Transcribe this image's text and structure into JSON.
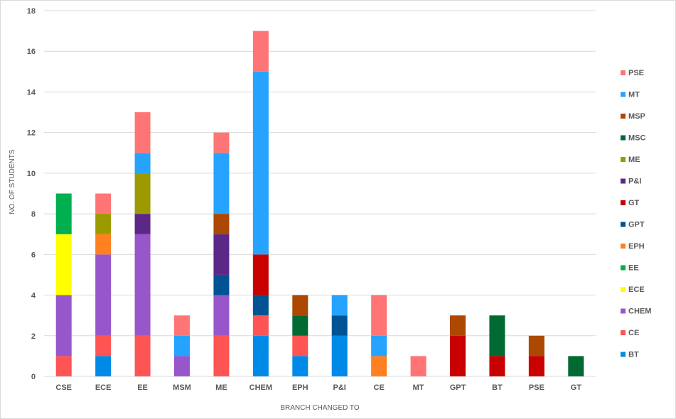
{
  "chart_data": {
    "type": "bar",
    "stacked": true,
    "title": "",
    "xlabel": "BRANCH CHANGED TO",
    "ylabel": "NO. OF STUDENTS",
    "ylim": [
      0,
      18
    ],
    "yticks": [
      0,
      2,
      4,
      6,
      8,
      10,
      12,
      14,
      16,
      18
    ],
    "grid": true,
    "legend_position": "right",
    "categories": [
      "CSE",
      "ECE",
      "EE",
      "MSM",
      "ME",
      "CHEM",
      "EPH",
      "P&I",
      "CE",
      "MT",
      "GPT",
      "BT",
      "PSE",
      "GT"
    ],
    "series": [
      {
        "name": "BT",
        "color": "#008ae8",
        "values": [
          0,
          1,
          0,
          0,
          0,
          2,
          1,
          2,
          0,
          0,
          0,
          0,
          0,
          0
        ]
      },
      {
        "name": "CE",
        "color": "#ff5454",
        "values": [
          1,
          1,
          2,
          0,
          2,
          1,
          1,
          0,
          0,
          0,
          0,
          0,
          0,
          0
        ]
      },
      {
        "name": "CHEM",
        "color": "#9757cb",
        "values": [
          3,
          4,
          5,
          1,
          2,
          0,
          0,
          0,
          0,
          0,
          0,
          0,
          0,
          0
        ]
      },
      {
        "name": "ECE",
        "color": "#ffff00",
        "values": [
          3,
          0,
          0,
          0,
          0,
          0,
          0,
          0,
          0,
          0,
          0,
          0,
          0,
          0
        ]
      },
      {
        "name": "EE",
        "color": "#00af50",
        "values": [
          2,
          0,
          0,
          0,
          0,
          0,
          0,
          0,
          0,
          0,
          0,
          0,
          0,
          0
        ]
      },
      {
        "name": "EPH",
        "color": "#ff8020",
        "values": [
          0,
          1,
          0,
          0,
          0,
          0,
          0,
          0,
          1,
          0,
          0,
          0,
          0,
          0
        ]
      },
      {
        "name": "GPT",
        "color": "#005493",
        "values": [
          0,
          0,
          0,
          0,
          1,
          1,
          0,
          1,
          0,
          0,
          0,
          0,
          0,
          0
        ]
      },
      {
        "name": "GT",
        "color": "#c80000",
        "values": [
          0,
          0,
          0,
          0,
          0,
          2,
          0,
          0,
          0,
          0,
          2,
          1,
          1,
          0
        ]
      },
      {
        "name": "P&I",
        "color": "#5c2886",
        "values": [
          0,
          0,
          1,
          0,
          2,
          0,
          0,
          0,
          0,
          0,
          0,
          0,
          0,
          0
        ]
      },
      {
        "name": "ME",
        "color": "#9b9b00",
        "values": [
          0,
          1,
          2,
          0,
          0,
          0,
          0,
          0,
          0,
          0,
          0,
          0,
          0,
          0
        ]
      },
      {
        "name": "MSC",
        "color": "#006a32",
        "values": [
          0,
          0,
          0,
          0,
          0,
          0,
          1,
          0,
          0,
          0,
          0,
          2,
          0,
          1
        ]
      },
      {
        "name": "MSP",
        "color": "#ad4800",
        "values": [
          0,
          0,
          0,
          0,
          1,
          0,
          1,
          0,
          0,
          0,
          1,
          0,
          1,
          0
        ]
      },
      {
        "name": "MT",
        "color": "#26a3ff",
        "values": [
          0,
          0,
          1,
          1,
          3,
          9,
          0,
          1,
          1,
          0,
          0,
          0,
          0,
          0
        ]
      },
      {
        "name": "PSE",
        "color": "#ff7575",
        "values": [
          0,
          1,
          2,
          1,
          1,
          2,
          0,
          0,
          2,
          1,
          0,
          0,
          0,
          0
        ]
      }
    ]
  }
}
